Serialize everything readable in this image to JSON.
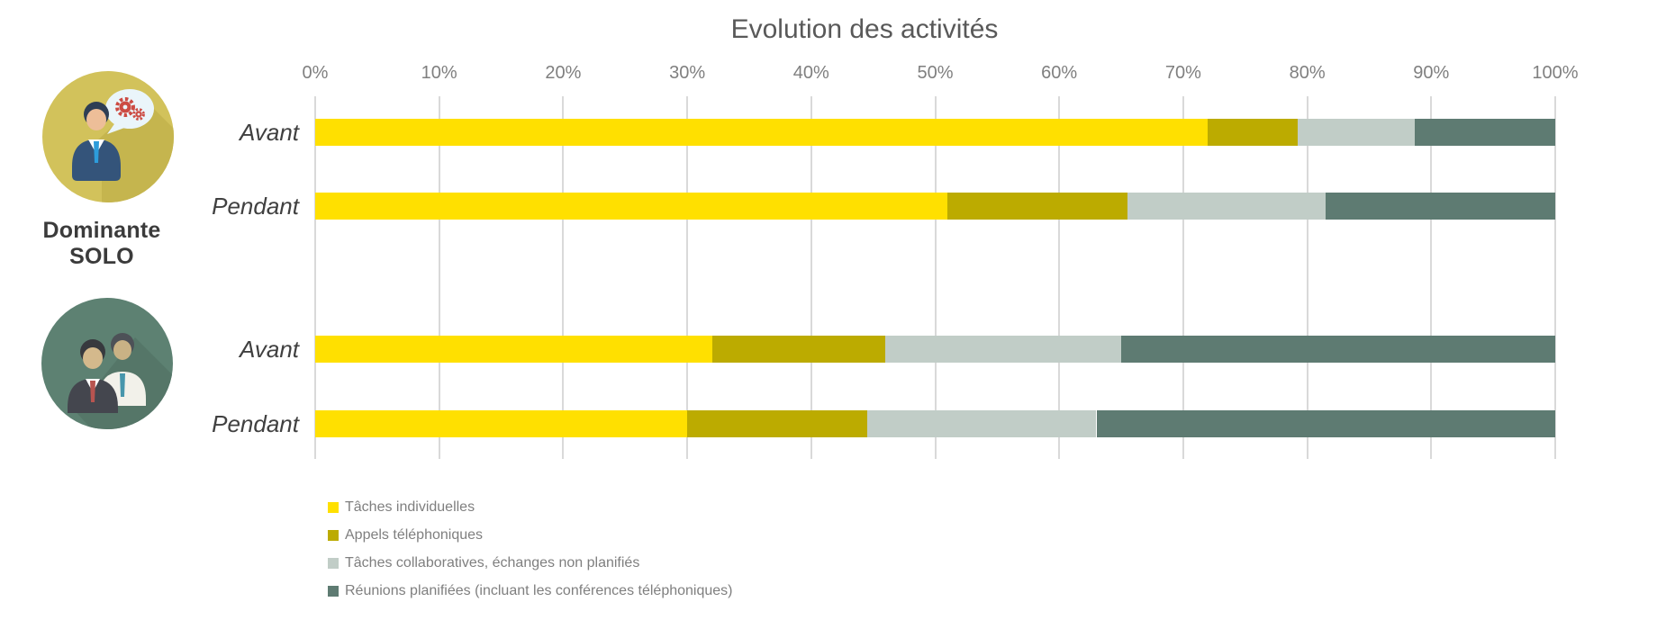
{
  "chart_data": {
    "type": "bar",
    "orientation": "horizontal",
    "stacked": true,
    "title": "Evolution des activités",
    "axis": {
      "position": "top",
      "min": 0,
      "max": 100,
      "ticks": [
        "0%",
        "10%",
        "20%",
        "30%",
        "40%",
        "50%",
        "60%",
        "70%",
        "80%",
        "90%",
        "100%"
      ],
      "grid": true,
      "gridline_color": "#d9d9d9"
    },
    "series": [
      {
        "name": "Tâches individuelles",
        "color": "#FFE000"
      },
      {
        "name": "Appels téléphoniques",
        "color": "#BCAB00"
      },
      {
        "name": "Tâches collaboratives, échanges non planifiés",
        "color": "#C1CDC7"
      },
      {
        "name": "Réunions planifiées (incluant les conférences téléphoniques)",
        "color": "#5E7B72"
      }
    ],
    "groups": [
      {
        "label": "Dominante SOLO",
        "icon": "person-speech-bubble-gears-icon",
        "icon_color": "#D2C25B",
        "rows": [
          {
            "label": "Avant",
            "values": [
              72,
              7.2,
              9.5,
              11.3
            ]
          },
          {
            "label": "Pendant",
            "values": [
              51,
              14.5,
              16,
              18.5
            ]
          }
        ]
      },
      {
        "label": "",
        "icon": "two-businessmen-icon",
        "icon_color": "#5D8172",
        "rows": [
          {
            "label": "Avant",
            "values": [
              32,
              14,
              19,
              35
            ]
          },
          {
            "label": "Pendant",
            "values": [
              30,
              14.5,
              18.5,
              37
            ]
          }
        ]
      }
    ],
    "legend_position": "bottom-left"
  }
}
